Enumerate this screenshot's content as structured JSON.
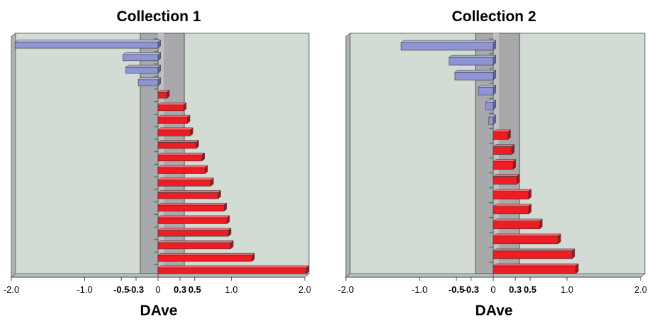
{
  "colors": {
    "plot_bg": "#d2dcd5",
    "band": "#a8a9ab",
    "band_light": "#c4c5c7",
    "positive_bar": "#ee1c24",
    "negative_bar": "#8f95d4",
    "frame": "#6e6e6e"
  },
  "chart_data": [
    {
      "type": "bar",
      "orientation": "horizontal",
      "title": "Collection 1",
      "xlabel": "DAve",
      "xlim": [
        -2.0,
        2.0
      ],
      "shaded_band": [
        -0.3,
        0.3
      ],
      "grid": false,
      "x_ticks": [
        {
          "value": -2.0,
          "label": "-2.0",
          "bold": false
        },
        {
          "value": -1.0,
          "label": "-1.0",
          "bold": false
        },
        {
          "value": -0.5,
          "label": "-0.5",
          "bold": true
        },
        {
          "value": -0.3,
          "label": "-0.3",
          "bold": true
        },
        {
          "value": 0,
          "label": "0",
          "bold": false
        },
        {
          "value": 0.3,
          "label": "0.3",
          "bold": true
        },
        {
          "value": 0.5,
          "label": "0.5",
          "bold": true
        },
        {
          "value": 1.0,
          "label": "1.0",
          "bold": false
        },
        {
          "value": 2.0,
          "label": "2.0",
          "bold": false
        }
      ],
      "values": [
        -1.95,
        -0.48,
        -0.44,
        -0.27,
        0.12,
        0.35,
        0.4,
        0.44,
        0.52,
        0.6,
        0.64,
        0.72,
        0.82,
        0.9,
        0.94,
        0.96,
        0.99,
        1.28,
        2.02
      ]
    },
    {
      "type": "bar",
      "orientation": "horizontal",
      "title": "Collection 2",
      "xlabel": "DAve",
      "xlim": [
        -2.0,
        2.0
      ],
      "shaded_band": [
        -0.3,
        0.3
      ],
      "grid": false,
      "x_ticks": [
        {
          "value": -2.0,
          "label": "-2.0",
          "bold": false
        },
        {
          "value": -1.0,
          "label": "-1.0",
          "bold": false
        },
        {
          "value": -0.5,
          "label": "-0.5",
          "bold": true
        },
        {
          "value": -0.3,
          "label": "-0.3",
          "bold": true
        },
        {
          "value": 0,
          "label": "0",
          "bold": false
        },
        {
          "value": 0.3,
          "label": "0.3",
          "bold": true
        },
        {
          "value": 0.5,
          "label": "0.5",
          "bold": true
        },
        {
          "value": 1.0,
          "label": "1.0",
          "bold": false
        },
        {
          "value": 2.0,
          "label": "2.0",
          "bold": false
        }
      ],
      "values": [
        -1.25,
        -0.6,
        -0.52,
        -0.2,
        -0.1,
        -0.06,
        0.2,
        0.25,
        0.27,
        0.32,
        0.48,
        0.48,
        0.63,
        0.88,
        1.07,
        1.12
      ]
    }
  ]
}
